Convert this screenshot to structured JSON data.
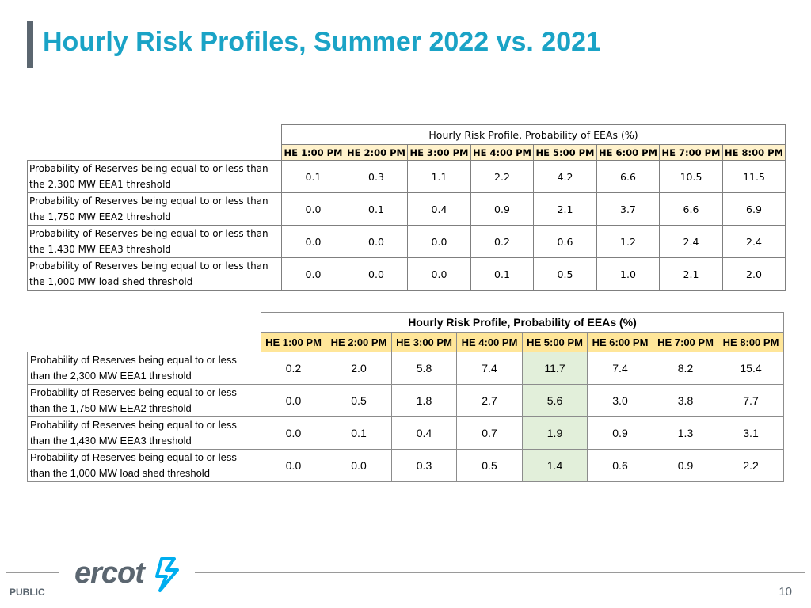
{
  "slide": {
    "title": "Hourly Risk Profiles, Summer 2022 vs. 2021",
    "footer_label": "PUBLIC",
    "page_number": "10",
    "logo_text": "ercot"
  },
  "tables": [
    {
      "caption": "Hourly Risk Profile, Probability of EEAs (%)",
      "hours": [
        "HE 1:00 PM",
        "HE 2:00 PM",
        "HE 3:00 PM",
        "HE 4:00 PM",
        "HE 5:00 PM",
        "HE 6:00 PM",
        "HE 7:00 PM",
        "HE 8:00 PM"
      ],
      "rows": [
        {
          "label_line1": "Probability of Reserves being equal to or less than",
          "label_line2": "the 2,300 MW EEA1 threshold",
          "values": [
            "0.1",
            "0.3",
            "1.1",
            "2.2",
            "4.2",
            "6.6",
            "10.5",
            "11.5"
          ]
        },
        {
          "label_line1": "Probability of Reserves being equal to or less than",
          "label_line2": "the 1,750 MW EEA2 threshold",
          "values": [
            "0.0",
            "0.1",
            "0.4",
            "0.9",
            "2.1",
            "3.7",
            "6.6",
            "6.9"
          ]
        },
        {
          "label_line1": "Probability of Reserves being equal to or less than",
          "label_line2": "the 1,430 MW EEA3 threshold",
          "values": [
            "0.0",
            "0.0",
            "0.0",
            "0.2",
            "0.6",
            "1.2",
            "2.4",
            "2.4"
          ]
        },
        {
          "label_line1": "Probability of Reserves being equal to or less than",
          "label_line2": "the 1,000 MW load shed threshold",
          "values": [
            "0.0",
            "0.0",
            "0.0",
            "0.1",
            "0.5",
            "1.0",
            "2.1",
            "2.0"
          ]
        }
      ]
    },
    {
      "caption": "Hourly Risk Profile, Probability of EEAs (%)",
      "hours": [
        "HE 1:00 PM",
        "HE 2:00 PM",
        "HE 3:00 PM",
        "HE 4:00 PM",
        "HE 5:00 PM",
        "HE 6:00 PM",
        "HE 7:00 PM",
        "HE 8:00 PM"
      ],
      "highlight_column": "HE 5:00 PM",
      "highlight_color": "#e2efda",
      "rows": [
        {
          "label_line1": "Probability of Reserves being equal to or less",
          "label_line2": "than the 2,300 MW EEA1 threshold",
          "values": [
            "0.2",
            "2.0",
            "5.8",
            "7.4",
            "11.7",
            "7.4",
            "8.2",
            "15.4"
          ]
        },
        {
          "label_line1": "Probability of Reserves being equal to or less",
          "label_line2": "than the 1,750 MW EEA2 threshold",
          "values": [
            "0.0",
            "0.5",
            "1.8",
            "2.7",
            "5.6",
            "3.0",
            "3.8",
            "7.7"
          ]
        },
        {
          "label_line1": "Probability of Reserves being equal to or less",
          "label_line2": "than the 1,430 MW EEA3 threshold",
          "values": [
            "0.0",
            "0.1",
            "0.4",
            "0.7",
            "1.9",
            "0.9",
            "1.3",
            "3.1"
          ]
        },
        {
          "label_line1": "Probability of Reserves being equal to or less",
          "label_line2": "than the 1,000 MW load shed threshold",
          "values": [
            "0.0",
            "0.0",
            "0.3",
            "0.5",
            "1.4",
            "0.6",
            "0.9",
            "2.2"
          ]
        }
      ]
    }
  ],
  "colors": {
    "title": "#1aa3c6",
    "title_bar": "#5b6670",
    "header_fill_2022": "#fff2cc",
    "header_fill_2021": "#ffe699",
    "logo_text": "#5b6670",
    "logo_bolt": "#00aeef"
  },
  "icons": {
    "logo_mark": "lightning-bolt-icon"
  }
}
